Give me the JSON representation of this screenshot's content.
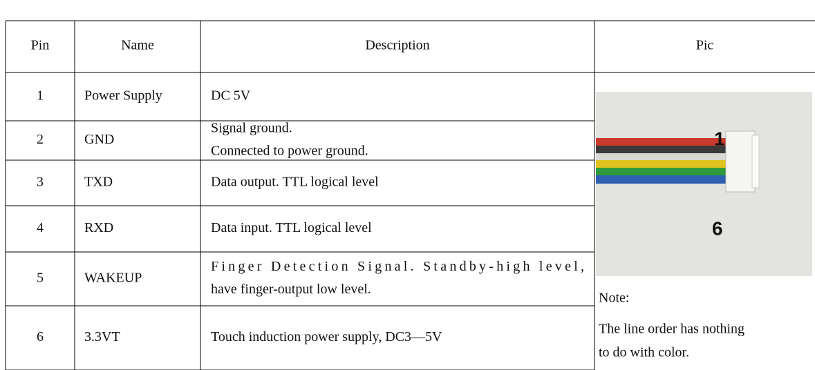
{
  "table": {
    "header": [
      "Pin",
      "Name",
      "Description",
      "Pic"
    ],
    "rows": [
      {
        "pin": "1",
        "name": "Power Supply",
        "description": [
          "DC 5V"
        ]
      },
      {
        "pin": "2",
        "name": "GND",
        "description": [
          "Signal ground.",
          "Connected to power ground."
        ]
      },
      {
        "pin": "3",
        "name": "TXD",
        "description": [
          "Data output. TTL logical level"
        ]
      },
      {
        "pin": "4",
        "name": "RXD",
        "description": [
          "Data input. TTL logical level"
        ]
      },
      {
        "pin": "5",
        "name": "WAKEUP",
        "description": [
          "Finger Detection Signal. Standby-high level,",
          "have finger-output low level."
        ]
      },
      {
        "pin": "6",
        "name": "3.3VT",
        "description": [
          "Touch induction power supply, DC3—5V"
        ]
      }
    ]
  },
  "pic": {
    "labels": [
      "1",
      "6"
    ]
  },
  "note": {
    "title": "Note:",
    "lines": [
      "The line order has nothing",
      "to do with color."
    ]
  }
}
